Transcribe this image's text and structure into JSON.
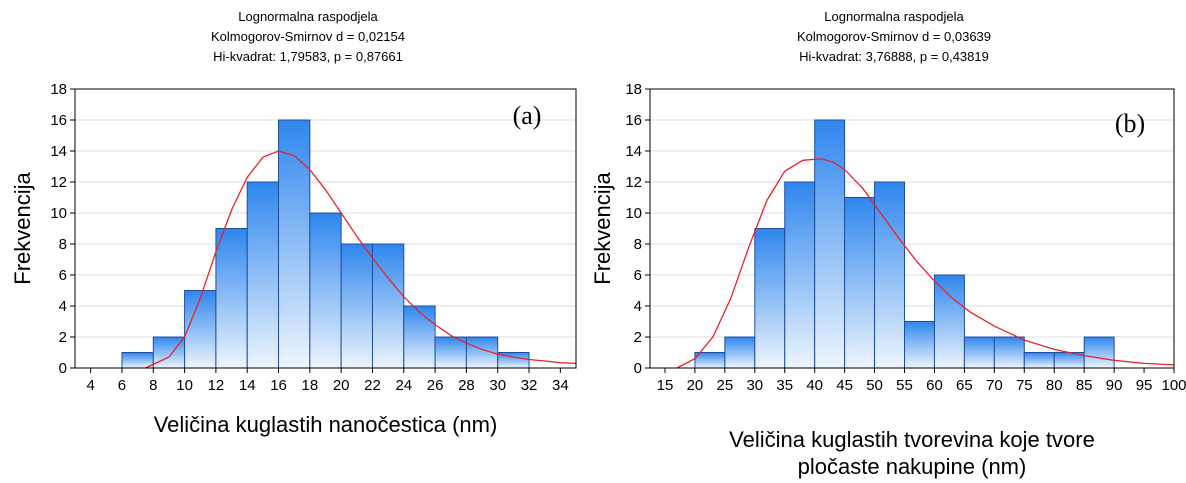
{
  "chart_data": [
    {
      "type": "bar",
      "panel_label": "(a)",
      "title": [
        "Lognormalna raspodjela",
        "Kolmogorov-Smirnov d = 0,02154",
        "Hi-kvadrat: 1,79583, p = 0,87661"
      ],
      "xlabel": [
        "Veličina kuglastih nanočestica (nm)"
      ],
      "ylabel": "Frekvencija",
      "xlim": [
        3,
        35
      ],
      "ylim": [
        0,
        18
      ],
      "xticks": [
        4,
        6,
        8,
        10,
        12,
        14,
        16,
        18,
        20,
        22,
        24,
        26,
        28,
        30,
        32,
        34
      ],
      "yticks": [
        0,
        2,
        4,
        6,
        8,
        10,
        12,
        14,
        16,
        18
      ],
      "bin_edges": [
        6,
        8,
        10,
        12,
        14,
        16,
        18,
        20,
        22,
        24,
        26,
        28,
        30,
        32
      ],
      "values": [
        1,
        2,
        5,
        9,
        12,
        16,
        10,
        8,
        8,
        4,
        2,
        2,
        1
      ],
      "fit_curve": {
        "x": [
          7.5,
          9,
          10,
          11,
          12,
          13,
          14,
          15,
          16,
          17,
          18,
          19,
          20,
          21,
          22,
          23,
          24,
          25,
          26,
          27,
          28,
          29,
          30,
          31,
          32,
          33,
          34,
          35
        ],
        "y": [
          0.0,
          0.7,
          2.0,
          4.5,
          7.5,
          10.2,
          12.3,
          13.6,
          14.0,
          13.7,
          12.8,
          11.5,
          10.0,
          8.5,
          7.1,
          5.8,
          4.6,
          3.6,
          2.8,
          2.1,
          1.6,
          1.2,
          0.9,
          0.7,
          0.55,
          0.45,
          0.35,
          0.3
        ]
      },
      "grid": true
    },
    {
      "type": "bar",
      "panel_label": "(b)",
      "title": [
        "Lognormalna raspodjela",
        "Kolmogorov-Smirnov d = 0,03639",
        "Hi-kvadrat: 3,76888, p = 0,43819"
      ],
      "xlabel": [
        "Veličina kuglastih tvorevina koje tvore",
        "pločaste nakupine (nm)"
      ],
      "ylabel": "Frekvencija",
      "xlim": [
        12.5,
        100
      ],
      "ylim": [
        0,
        18
      ],
      "xticks": [
        15,
        20,
        25,
        30,
        35,
        40,
        45,
        50,
        55,
        60,
        65,
        70,
        75,
        80,
        85,
        90,
        95,
        100
      ],
      "yticks": [
        0,
        2,
        4,
        6,
        8,
        10,
        12,
        14,
        16,
        18
      ],
      "bin_edges": [
        20,
        25,
        30,
        35,
        40,
        45,
        50,
        55,
        60,
        65,
        70,
        75,
        80,
        85,
        90
      ],
      "values": [
        1,
        2,
        9,
        12,
        16,
        11,
        12,
        3,
        6,
        2,
        2,
        1,
        1,
        2
      ],
      "fit_curve": {
        "x": [
          17,
          20,
          23,
          26,
          29,
          32,
          35,
          38,
          41,
          43,
          45,
          48,
          51,
          54,
          57,
          60,
          63,
          66,
          70,
          75,
          80,
          85,
          90,
          95,
          100
        ],
        "y": [
          0.0,
          0.6,
          2.0,
          4.5,
          7.8,
          10.8,
          12.7,
          13.4,
          13.5,
          13.3,
          12.8,
          11.6,
          10.0,
          8.4,
          6.9,
          5.6,
          4.5,
          3.6,
          2.7,
          1.8,
          1.2,
          0.8,
          0.5,
          0.3,
          0.2
        ]
      },
      "grid": true
    }
  ]
}
